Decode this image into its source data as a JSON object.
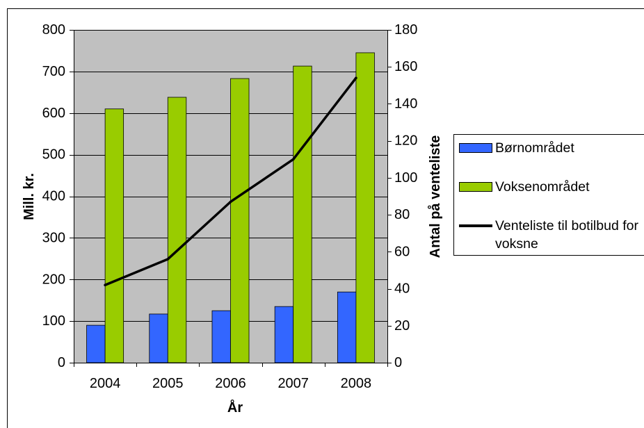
{
  "chart_data": {
    "type": "bar",
    "categories": [
      "2004",
      "2005",
      "2006",
      "2007",
      "2008"
    ],
    "series": [
      {
        "name": "Børnområdet",
        "type": "bar",
        "secondary_axis": false,
        "color": "#3366FF",
        "values": [
          90,
          117,
          125,
          135,
          170
        ]
      },
      {
        "name": "Voksenområdet",
        "type": "bar",
        "secondary_axis": false,
        "color": "#99CC00",
        "values": [
          610,
          638,
          683,
          713,
          745
        ]
      },
      {
        "name": "Venteliste til botilbud for voksne",
        "type": "line",
        "secondary_axis": true,
        "color": "#000000",
        "values": [
          42,
          56,
          87,
          110,
          154
        ]
      }
    ],
    "xlabel": "År",
    "ylabel": "Mill. kr.",
    "y2label": "Antal på venteliste",
    "ylim": [
      0,
      800
    ],
    "y2lim": [
      0,
      180
    ],
    "y_ticks": [
      "0",
      "100",
      "200",
      "300",
      "400",
      "500",
      "600",
      "700",
      "800"
    ],
    "y2_ticks": [
      "0",
      "20",
      "40",
      "60",
      "80",
      "100",
      "120",
      "140",
      "160",
      "180"
    ],
    "grid": true,
    "legend": "right",
    "plot_background": "#C0C0C0"
  }
}
